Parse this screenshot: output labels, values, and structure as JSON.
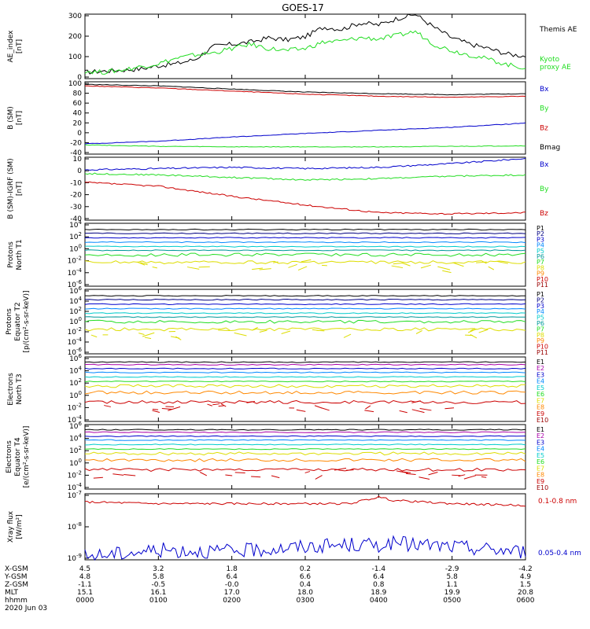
{
  "title": "GOES-17",
  "colors": {
    "black": "#000000",
    "green": "#22dd22",
    "red": "#cc0000",
    "blue": "#0000cc",
    "navy": "#000080",
    "cyan": "#00cccc",
    "teal": "#009999",
    "orange": "#ff8800",
    "yellow": "#dddd00",
    "purple": "#aa00aa",
    "dkred": "#990000"
  },
  "chart_data": [
    {
      "type": "line",
      "ylabel": "AE_index\n[nT]",
      "ylim": [
        0,
        300
      ],
      "ticks": [
        "0",
        "100",
        "200",
        "300"
      ],
      "x_hours": [
        0,
        0.25,
        0.5,
        0.75,
        1,
        1.25,
        1.5,
        1.75,
        2,
        2.25,
        2.5,
        2.75,
        3,
        3.25,
        3.5,
        3.75,
        4,
        4.25,
        4.5,
        4.75,
        5,
        5.25,
        5.5,
        5.75,
        6
      ],
      "series": [
        {
          "name": "Themis AE",
          "color": "#000000",
          "values": [
            30,
            35,
            40,
            45,
            60,
            70,
            90,
            150,
            160,
            170,
            190,
            180,
            195,
            240,
            230,
            260,
            250,
            280,
            300,
            240,
            190,
            160,
            140,
            115,
            105
          ]
        },
        {
          "name": "Kyoto\nproxy AE",
          "color": "#22dd22",
          "values": [
            35,
            30,
            40,
            55,
            70,
            95,
            110,
            120,
            140,
            160,
            140,
            130,
            140,
            170,
            175,
            190,
            185,
            200,
            220,
            160,
            130,
            110,
            90,
            65,
            50
          ]
        }
      ]
    },
    {
      "type": "line",
      "ylabel": "B (SM)\n[nT]",
      "ylim": [
        -40,
        100
      ],
      "ticks": [
        "-40",
        "-20",
        "0",
        "20",
        "40",
        "60",
        "80",
        "100"
      ],
      "x_hours": [
        0,
        1,
        2,
        3,
        4,
        5,
        6
      ],
      "series": [
        {
          "name": "Bx",
          "color": "#0000cc",
          "values": [
            -20,
            -15,
            -7,
            0,
            6,
            12,
            20
          ]
        },
        {
          "name": "By",
          "color": "#22dd22",
          "values": [
            -22,
            -25,
            -26,
            -26,
            -26,
            -25,
            -24
          ]
        },
        {
          "name": "Bz",
          "color": "#cc0000",
          "values": [
            92,
            88,
            82,
            76,
            72,
            70,
            72
          ]
        },
        {
          "name": "Bmag",
          "color": "#000000",
          "values": [
            95,
            92,
            86,
            80,
            77,
            75,
            77
          ]
        }
      ]
    },
    {
      "type": "line",
      "ylabel": "B (SM)-IGRF (SM)\n[nT]",
      "ylim": [
        -40,
        10
      ],
      "ticks": [
        "-40",
        "-30",
        "-20",
        "-10",
        "0",
        "10"
      ],
      "x_hours": [
        0,
        1,
        2,
        3,
        4,
        5,
        6
      ],
      "series": [
        {
          "name": "Bx",
          "color": "#0000cc",
          "values": [
            0,
            1,
            2,
            1,
            2,
            5,
            9
          ]
        },
        {
          "name": "By",
          "color": "#22dd22",
          "values": [
            -3,
            -4,
            -6,
            -8,
            -7,
            -5,
            -4
          ]
        },
        {
          "name": "Bz",
          "color": "#cc0000",
          "values": [
            -10,
            -13,
            -21,
            -28,
            -34,
            -35,
            -34
          ]
        }
      ]
    },
    {
      "type": "line",
      "ylabel": "Protons\nNorth T1",
      "yscale": "log",
      "ticks": [
        "10^-6",
        "10^-4",
        "10^-2",
        "10^0",
        "10^2",
        "10^4"
      ],
      "channels": [
        "P1",
        "P2",
        "P3",
        "P4",
        "P5",
        "P6",
        "P7",
        "P8",
        "P9",
        "P10",
        "P11"
      ],
      "channel_colors": [
        "#000000",
        "#000080",
        "#0000cc",
        "#0088ff",
        "#00cccc",
        "#009999",
        "#22dd22",
        "#dddd00",
        "#ff8800",
        "#cc0000",
        "#990000"
      ]
    },
    {
      "type": "line",
      "ylabel": "Protons\nEquator T2\n[p/(cm²-s-sr-keV)]",
      "yscale": "log",
      "ticks": [
        "10^-6",
        "10^-4",
        "10^-2",
        "10^0",
        "10^2",
        "10^4",
        "10^6"
      ],
      "channels": [
        "P1",
        "P2",
        "P3",
        "P4",
        "P5",
        "P6",
        "P7",
        "P8",
        "P9",
        "P10",
        "P11"
      ],
      "channel_colors": [
        "#000000",
        "#000080",
        "#0000cc",
        "#0088ff",
        "#00cccc",
        "#009999",
        "#22dd22",
        "#dddd00",
        "#ff8800",
        "#cc0000",
        "#990000"
      ]
    },
    {
      "type": "line",
      "ylabel": "Electrons\nNorth T3",
      "yscale": "log",
      "ticks": [
        "10^-4",
        "10^-2",
        "10^0",
        "10^2",
        "10^4",
        "10^6"
      ],
      "channels": [
        "E1",
        "E2",
        "E3",
        "E4",
        "E5",
        "E6",
        "E7",
        "E8",
        "E9",
        "E10"
      ],
      "channel_colors": [
        "#000000",
        "#aa00aa",
        "#0000cc",
        "#0088ff",
        "#00cccc",
        "#22dd22",
        "#dddd00",
        "#ff8800",
        "#cc0000",
        "#990000"
      ]
    },
    {
      "type": "line",
      "ylabel": "Electrons\nEquator T4\n[e/(cm²-s-sr-keV)]",
      "yscale": "log",
      "ticks": [
        "10^-4",
        "10^-2",
        "10^0",
        "10^2",
        "10^4",
        "10^6"
      ],
      "channels": [
        "E1",
        "E2",
        "E3",
        "E4",
        "E5",
        "E6",
        "E7",
        "E8",
        "E9",
        "E10"
      ],
      "channel_colors": [
        "#000000",
        "#aa00aa",
        "#0000cc",
        "#0088ff",
        "#00cccc",
        "#22dd22",
        "#dddd00",
        "#ff8800",
        "#cc0000",
        "#990000"
      ]
    },
    {
      "type": "line",
      "ylabel": "Xray flux\n[W/m²]",
      "yscale": "log",
      "ticks": [
        "10^-9",
        "10^-8",
        "10^-7"
      ],
      "x_hours": [
        0,
        1,
        2,
        3,
        3.6,
        4.0,
        4.2,
        5,
        6
      ],
      "series": [
        {
          "name": "0.1-0.8 nm",
          "color": "#cc0000",
          "values": [
            -7.25,
            -7.3,
            -7.3,
            -7.3,
            -7.3,
            -7.1,
            -7.2,
            -7.3,
            -7.35
          ]
        },
        {
          "name": "0.05-0.4 nm",
          "color": "#0000cc",
          "values": [
            -8.9,
            -8.7,
            -8.75,
            -8.6,
            -8.55,
            -8.55,
            -8.5,
            -8.6,
            -8.75
          ]
        }
      ]
    }
  ],
  "xaxis": {
    "rows": [
      {
        "label": "X-GSM",
        "values": [
          "4.5",
          "3.2",
          "1.8",
          "0.2",
          "-1.4",
          "-2.9",
          "-4.2"
        ]
      },
      {
        "label": "Y-GSM",
        "values": [
          "4.8",
          "5.8",
          "6.4",
          "6.6",
          "6.4",
          "5.8",
          "4.9"
        ]
      },
      {
        "label": "Z-GSM",
        "values": [
          "-1.1",
          "-0.5",
          "-0.0",
          "0.4",
          "0.8",
          "1.1",
          "1.5"
        ]
      },
      {
        "label": "MLT",
        "values": [
          "15.1",
          "16.1",
          "17.0",
          "18.0",
          "18.9",
          "19.9",
          "20.8"
        ]
      },
      {
        "label": "hhmm",
        "values": [
          "0000",
          "0100",
          "0200",
          "0300",
          "0400",
          "0500",
          "0600"
        ]
      }
    ],
    "date": "2020 Jun 03"
  }
}
